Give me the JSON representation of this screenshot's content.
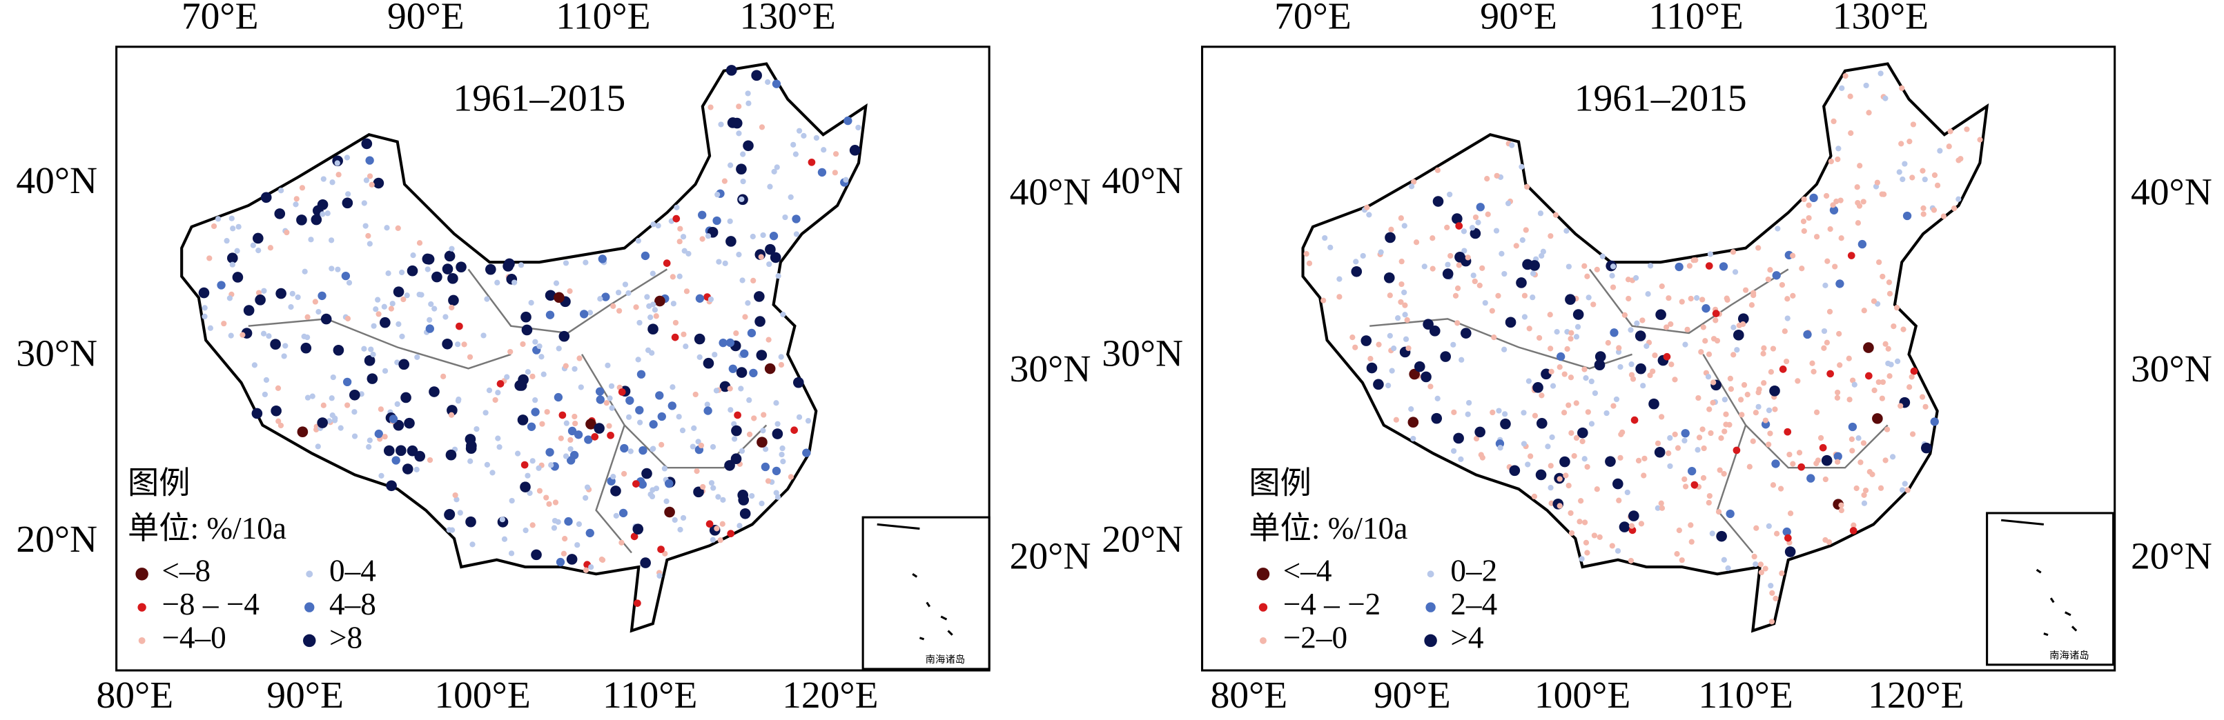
{
  "panels": [
    {
      "title": "1961–2015",
      "top_ticks": [
        "70°E",
        "90°E",
        "110°E",
        "130°E"
      ],
      "bottom_ticks": [
        "80°E",
        "90°E",
        "100°E",
        "110°E",
        "120°E"
      ],
      "left_ticks": [
        "40°N",
        "30°N",
        "20°N"
      ],
      "right_ticks": [
        "40°N",
        "30°N",
        "20°N"
      ],
      "legend": {
        "heading": "图例",
        "unit": "单位: %/10a",
        "items": [
          {
            "label": "<–8",
            "color": "#5a0a0a"
          },
          {
            "label": "−8 – −4",
            "color": "#d7191c"
          },
          {
            "label": "−4–0",
            "color": "#f4b7ab"
          },
          {
            "label": "0–4",
            "color": "#b8c8ea"
          },
          {
            "label": "4–8",
            "color": "#4a6fc0"
          },
          {
            "label": ">8",
            "color": "#0a1450"
          }
        ]
      },
      "inset_label": "南海诸岛"
    },
    {
      "title": "1961–2015",
      "top_ticks": [
        "70°E",
        "90°E",
        "110°E",
        "130°E"
      ],
      "bottom_ticks": [
        "80°E",
        "90°E",
        "100°E",
        "110°E",
        "120°E"
      ],
      "left_ticks": [
        "40°N",
        "30°N",
        "20°N"
      ],
      "right_ticks": [
        "40°N",
        "30°N",
        "20°N"
      ],
      "legend": {
        "heading": "图例",
        "unit": "单位: %/10a",
        "items": [
          {
            "label": "<–4",
            "color": "#5a0a0a"
          },
          {
            "label": "−4 – −2",
            "color": "#d7191c"
          },
          {
            "label": "−2–0",
            "color": "#f4b7ab"
          },
          {
            "label": "0–2",
            "color": "#b8c8ea"
          },
          {
            "label": "2–4",
            "color": "#4a6fc0"
          },
          {
            "label": ">4",
            "color": "#0a1450"
          }
        ]
      },
      "inset_label": "南海诸岛"
    }
  ]
}
